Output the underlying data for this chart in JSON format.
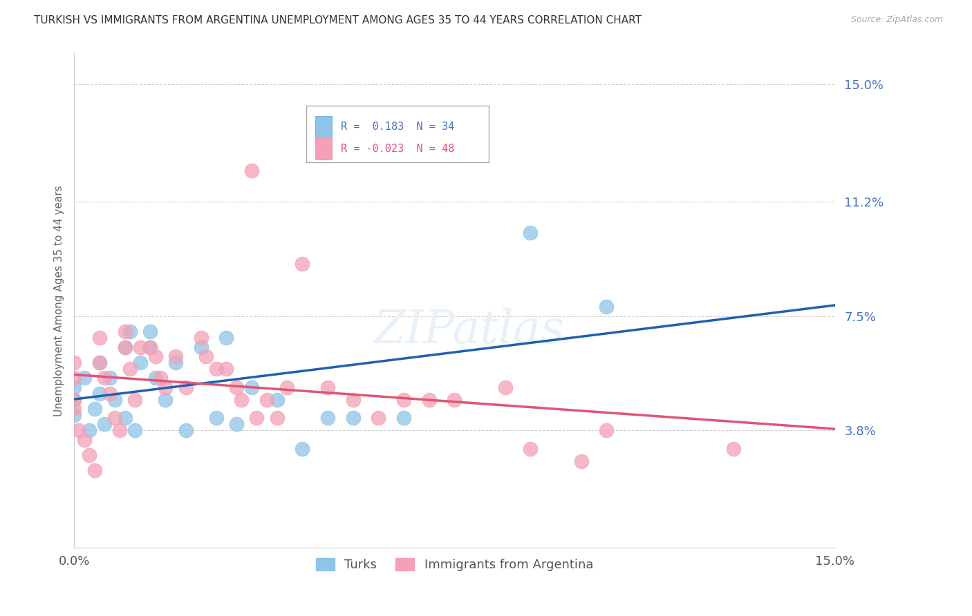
{
  "title": "TURKISH VS IMMIGRANTS FROM ARGENTINA UNEMPLOYMENT AMONG AGES 35 TO 44 YEARS CORRELATION CHART",
  "source": "Source: ZipAtlas.com",
  "ylabel": "Unemployment Among Ages 35 to 44 years",
  "xlim": [
    0.0,
    0.15
  ],
  "ylim": [
    0.0,
    0.16
  ],
  "right_ytick_labels": [
    "15.0%",
    "11.2%",
    "7.5%",
    "3.8%"
  ],
  "right_yticks": [
    0.15,
    0.112,
    0.075,
    0.038
  ],
  "xticks": [
    0.0,
    0.15
  ],
  "xtick_labels": [
    "0.0%",
    "15.0%"
  ],
  "legend1_text": "R =  0.183  N = 34",
  "legend2_text": "R = -0.023  N = 48",
  "legend_label1": "Turks",
  "legend_label2": "Immigrants from Argentina",
  "color_blue": "#8ec4e8",
  "color_pink": "#f4a0b5",
  "line_color_blue": "#2060b0",
  "line_color_pink": "#e05575",
  "background_color": "#ffffff",
  "grid_color": "#d0d0d0",
  "turks_x": [
    0.0,
    0.0,
    0.0,
    0.002,
    0.003,
    0.004,
    0.005,
    0.005,
    0.006,
    0.007,
    0.008,
    0.01,
    0.01,
    0.011,
    0.012,
    0.013,
    0.015,
    0.015,
    0.016,
    0.018,
    0.02,
    0.022,
    0.025,
    0.028,
    0.03,
    0.032,
    0.035,
    0.04,
    0.045,
    0.05,
    0.055,
    0.065,
    0.09,
    0.105
  ],
  "turks_y": [
    0.048,
    0.052,
    0.043,
    0.055,
    0.038,
    0.045,
    0.06,
    0.05,
    0.04,
    0.055,
    0.048,
    0.065,
    0.042,
    0.07,
    0.038,
    0.06,
    0.065,
    0.07,
    0.055,
    0.048,
    0.06,
    0.038,
    0.065,
    0.042,
    0.068,
    0.04,
    0.052,
    0.048,
    0.032,
    0.042,
    0.042,
    0.042,
    0.102,
    0.078
  ],
  "argentina_x": [
    0.0,
    0.0,
    0.0,
    0.0,
    0.001,
    0.002,
    0.003,
    0.004,
    0.005,
    0.005,
    0.006,
    0.007,
    0.008,
    0.009,
    0.01,
    0.01,
    0.011,
    0.012,
    0.013,
    0.015,
    0.016,
    0.017,
    0.018,
    0.02,
    0.022,
    0.025,
    0.026,
    0.028,
    0.03,
    0.032,
    0.033,
    0.035,
    0.036,
    0.038,
    0.04,
    0.042,
    0.045,
    0.05,
    0.055,
    0.06,
    0.065,
    0.07,
    0.075,
    0.085,
    0.09,
    0.1,
    0.105,
    0.13
  ],
  "argentina_y": [
    0.048,
    0.055,
    0.06,
    0.045,
    0.038,
    0.035,
    0.03,
    0.025,
    0.06,
    0.068,
    0.055,
    0.05,
    0.042,
    0.038,
    0.07,
    0.065,
    0.058,
    0.048,
    0.065,
    0.065,
    0.062,
    0.055,
    0.052,
    0.062,
    0.052,
    0.068,
    0.062,
    0.058,
    0.058,
    0.052,
    0.048,
    0.122,
    0.042,
    0.048,
    0.042,
    0.052,
    0.092,
    0.052,
    0.048,
    0.042,
    0.048,
    0.048,
    0.048,
    0.052,
    0.032,
    0.028,
    0.038,
    0.032
  ]
}
